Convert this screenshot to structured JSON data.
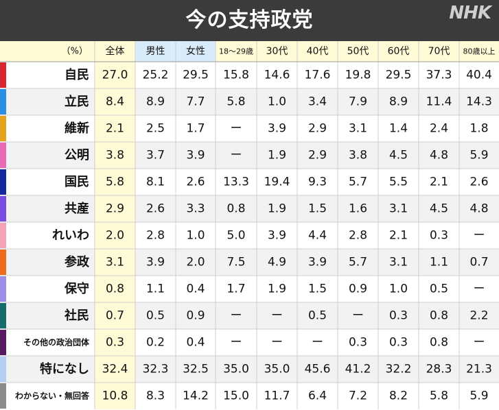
{
  "title": "今の支持政党",
  "logo": "NHK",
  "unit_label": "（%）",
  "columns": [
    "全体",
    "男性",
    "女性",
    "18～29歳",
    "30代",
    "40代",
    "50代",
    "60代",
    "70代",
    "80歳以上"
  ],
  "colors": {
    "header_bg": "#3b3b3b",
    "col_header_bg": "#fffbd6",
    "total_col_bg": "#fffbd6",
    "gender_header_bg": "#d9ecfb",
    "row_even_bg": "#ffffff",
    "row_odd_bg": "#f2f2f2",
    "grid_line": "#cfcfcf"
  },
  "chart_data": {
    "type": "table",
    "columns": [
      "全体",
      "男性",
      "女性",
      "18～29歳",
      "30代",
      "40代",
      "50代",
      "60代",
      "70代",
      "80歳以上"
    ],
    "rows": [
      {
        "party": "自民",
        "color": "#d7262e",
        "values": [
          "27.0",
          "25.2",
          "29.5",
          "15.8",
          "14.6",
          "17.6",
          "19.8",
          "29.5",
          "37.3",
          "40.4"
        ]
      },
      {
        "party": "立民",
        "color": "#2b8fe6",
        "values": [
          "8.4",
          "8.9",
          "7.7",
          "5.8",
          "1.0",
          "3.4",
          "7.9",
          "8.9",
          "11.4",
          "14.3"
        ]
      },
      {
        "party": "維新",
        "color": "#e5a21c",
        "values": [
          "2.1",
          "2.5",
          "1.7",
          "ー",
          "3.9",
          "2.9",
          "3.1",
          "1.4",
          "2.4",
          "1.8"
        ]
      },
      {
        "party": "公明",
        "color": "#e96bb5",
        "values": [
          "3.8",
          "3.7",
          "3.9",
          "ー",
          "1.9",
          "2.9",
          "3.8",
          "4.5",
          "4.8",
          "5.9"
        ]
      },
      {
        "party": "国民",
        "color": "#142a9c",
        "values": [
          "5.8",
          "8.1",
          "2.6",
          "13.3",
          "19.4",
          "9.3",
          "5.7",
          "5.5",
          "2.1",
          "2.6"
        ]
      },
      {
        "party": "共産",
        "color": "#7a4de0",
        "values": [
          "2.9",
          "2.6",
          "3.3",
          "0.8",
          "1.9",
          "1.5",
          "1.6",
          "3.1",
          "4.5",
          "4.8"
        ]
      },
      {
        "party": "れいわ",
        "color": "#f5a3b7",
        "values": [
          "2.0",
          "2.8",
          "1.0",
          "5.0",
          "3.9",
          "4.4",
          "2.8",
          "2.1",
          "0.3",
          "ー"
        ]
      },
      {
        "party": "参政",
        "color": "#ee6a1d",
        "values": [
          "3.1",
          "3.9",
          "2.0",
          "7.5",
          "4.9",
          "3.9",
          "5.7",
          "3.1",
          "1.1",
          "0.7"
        ]
      },
      {
        "party": "保守",
        "color": "#9a8ee8",
        "values": [
          "0.8",
          "1.1",
          "0.4",
          "1.7",
          "1.9",
          "1.5",
          "0.9",
          "1.0",
          "0.5",
          "ー"
        ]
      },
      {
        "party": "社民",
        "color": "#156c6c",
        "values": [
          "0.7",
          "0.5",
          "0.9",
          "ー",
          "ー",
          "0.5",
          "ー",
          "0.3",
          "0.8",
          "2.2"
        ]
      },
      {
        "party": "その他の政治団体",
        "color": "#5a1a63",
        "values": [
          "0.3",
          "0.2",
          "0.4",
          "ー",
          "ー",
          "ー",
          "0.3",
          "0.3",
          "0.8",
          "ー"
        ]
      },
      {
        "party": "特になし",
        "color": "#b4cff2",
        "values": [
          "32.4",
          "32.3",
          "32.5",
          "35.0",
          "35.0",
          "45.6",
          "41.2",
          "32.2",
          "28.3",
          "21.3"
        ]
      },
      {
        "party": "わからない・無回答",
        "color": "#8c8c8c",
        "values": [
          "10.8",
          "8.3",
          "14.2",
          "15.0",
          "11.7",
          "6.4",
          "7.2",
          "8.2",
          "5.8",
          "5.9"
        ]
      }
    ]
  }
}
